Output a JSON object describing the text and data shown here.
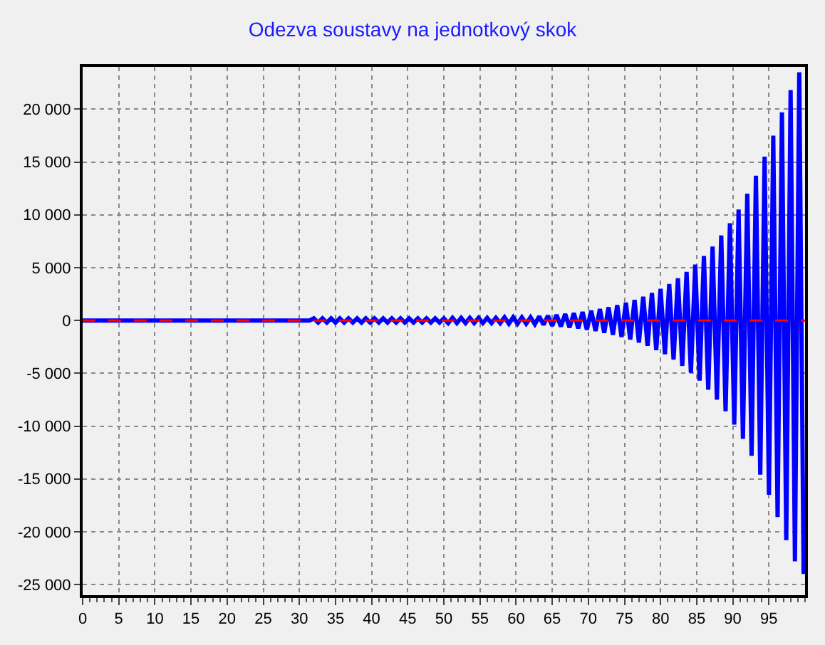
{
  "chart_data": {
    "type": "line",
    "title": "Odezva soustavy na jednotkový skok",
    "series": [
      {
        "color": "#0000ff",
        "x": [
          0,
          31.4,
          32,
          32.6,
          33.2,
          33.8,
          34.4,
          35,
          35.6,
          36.2,
          36.8,
          37.4,
          38,
          38.6,
          39.2,
          39.8,
          40.4,
          41,
          41.6,
          42.2,
          42.8,
          43.4,
          44,
          44.6,
          45.2,
          45.8,
          46.4,
          47,
          47.6,
          48.2,
          48.8,
          49.4,
          50,
          50.6,
          51.2,
          51.8,
          52.4,
          53,
          53.6,
          54.2,
          54.8,
          55.4,
          56,
          56.6,
          57.2,
          57.8,
          58.4,
          59,
          59.6,
          60.2,
          60.8,
          61.4,
          62,
          62.6,
          63.2,
          63.8,
          64.4,
          65,
          65.6,
          66.2,
          66.8,
          67.4,
          68,
          68.6,
          69.2,
          69.8,
          70.4,
          71,
          71.6,
          72.2,
          72.8,
          73.4,
          74,
          74.6,
          75.2,
          75.8,
          76.4,
          77,
          77.6,
          78.2,
          78.8,
          79.4,
          80,
          80.6,
          81.2,
          81.8,
          82.4,
          83,
          83.6,
          84.2,
          84.8,
          85.4,
          86,
          86.6,
          87.2,
          87.8,
          88.4,
          89,
          89.6,
          90.2,
          90.8,
          91.4,
          92,
          92.6,
          93.2,
          93.8,
          94.4,
          95,
          95.6,
          96.2,
          96.8,
          97.4,
          98,
          98.6,
          99.2,
          99.8
        ],
        "values": [
          0,
          0,
          200,
          -200,
          200,
          -200,
          200,
          -200,
          200,
          -200,
          200,
          -200,
          200,
          -200,
          200,
          -200,
          200,
          -200,
          200,
          -200,
          200,
          -200,
          200,
          -200,
          200,
          -200,
          200,
          -200,
          200,
          -200,
          200,
          -200,
          200,
          -250,
          250,
          -250,
          250,
          -250,
          250,
          -250,
          250,
          -250,
          250,
          -250,
          250,
          -250,
          300,
          -300,
          300,
          -300,
          300,
          -300,
          300,
          -350,
          380,
          -400,
          450,
          -500,
          530,
          -570,
          610,
          -660,
          700,
          -750,
          800,
          -870,
          930,
          -1000,
          1080,
          -1160,
          1250,
          -1350,
          1450,
          -1560,
          1680,
          -1800,
          1950,
          -2100,
          2250,
          -2400,
          2600,
          -2800,
          3000,
          -3200,
          3450,
          -3700,
          4000,
          -4300,
          4600,
          -4950,
          5300,
          -5700,
          6100,
          -6550,
          7000,
          -7500,
          8050,
          -8600,
          9200,
          -9850,
          10500,
          -11200,
          12000,
          -12800,
          13700,
          -14600,
          15500,
          -16500,
          17500,
          -18600,
          19700,
          -20800,
          21800,
          -22800,
          23500,
          -24000
        ]
      }
    ],
    "ref_lines": [
      {
        "axis": "y",
        "value": 0,
        "color": "#ff0000",
        "line_style": "dashed"
      }
    ],
    "xlim": [
      0,
      100
    ],
    "xticks": [
      0,
      5,
      10,
      15,
      20,
      25,
      30,
      35,
      40,
      45,
      50,
      55,
      60,
      65,
      70,
      75,
      80,
      85,
      90,
      95
    ],
    "ylim": [
      -26000,
      24000
    ],
    "yticks": [
      {
        "value": -25000,
        "label": "-25 000"
      },
      {
        "value": -20000,
        "label": "-20 000"
      },
      {
        "value": -15000,
        "label": "-15 000"
      },
      {
        "value": -10000,
        "label": "-10 000"
      },
      {
        "value": -5000,
        "label": "-5 000"
      },
      0,
      {
        "value": 5000,
        "label": "5 000"
      },
      {
        "value": 10000,
        "label": "10 000"
      },
      {
        "value": 15000,
        "label": "15 000"
      },
      {
        "value": 20000,
        "label": "20 000"
      }
    ],
    "grid": true,
    "marker": "none",
    "line_style": "solid"
  }
}
